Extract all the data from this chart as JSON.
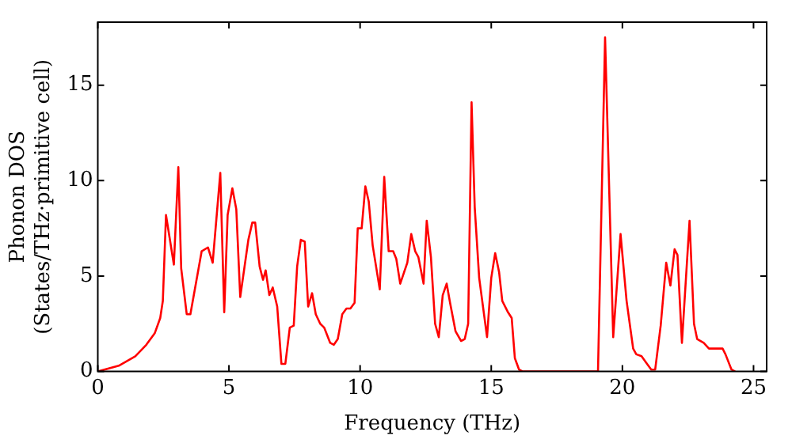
{
  "chart_data": {
    "type": "line",
    "xlabel": "Frequency (THz)",
    "ylabel": "Phonon DOS\n(States/THz·primitive cell)",
    "xlim": [
      0,
      25.5
    ],
    "ylim": [
      0,
      18.3
    ],
    "xticks": [
      0,
      5,
      10,
      15,
      20,
      25
    ],
    "yticks": [
      0,
      5,
      10,
      15
    ],
    "grid": false,
    "legend": false,
    "marker": "none",
    "line_style": "solid",
    "x": [
      0,
      0.8,
      1.43,
      1.85,
      2.17,
      2.38,
      2.48,
      2.6,
      2.9,
      3.07,
      3.18,
      3.39,
      3.53,
      3.96,
      4.2,
      4.38,
      4.67,
      4.82,
      4.95,
      5.13,
      5.28,
      5.43,
      5.74,
      5.89,
      6.0,
      6.17,
      6.3,
      6.4,
      6.54,
      6.67,
      6.84,
      7.0,
      7.15,
      7.32,
      7.47,
      7.6,
      7.74,
      7.89,
      8.02,
      8.17,
      8.31,
      8.48,
      8.63,
      8.86,
      9.0,
      9.15,
      9.32,
      9.48,
      9.63,
      9.79,
      9.91,
      10.06,
      10.2,
      10.33,
      10.48,
      10.75,
      10.92,
      11.09,
      11.26,
      11.38,
      11.53,
      11.8,
      11.95,
      12.1,
      12.22,
      12.42,
      12.54,
      12.7,
      12.86,
      13.0,
      13.15,
      13.3,
      13.43,
      13.64,
      13.85,
      13.99,
      14.12,
      14.25,
      14.37,
      14.54,
      14.84,
      15.0,
      15.15,
      15.3,
      15.42,
      15.64,
      15.78,
      15.9,
      16.06,
      16.2,
      19.07,
      19.34,
      19.65,
      19.93,
      20.16,
      20.41,
      20.53,
      20.73,
      20.94,
      21.1,
      21.25,
      21.46,
      21.67,
      21.83,
      21.99,
      22.1,
      22.27,
      22.56,
      22.73,
      22.85,
      23.1,
      23.3,
      23.63,
      23.82,
      23.93,
      24.16,
      24.3
    ],
    "series": [
      {
        "color": "#ff0000",
        "values": [
          0,
          0.3,
          0.8,
          1.4,
          2.0,
          2.8,
          3.7,
          8.2,
          5.6,
          10.7,
          5.4,
          3.0,
          3.0,
          6.3,
          6.5,
          5.7,
          10.4,
          3.1,
          8.2,
          9.6,
          8.5,
          3.9,
          6.9,
          7.8,
          7.8,
          5.5,
          4.8,
          5.3,
          4.0,
          4.4,
          3.4,
          0.4,
          0.4,
          2.3,
          2.4,
          5.5,
          6.9,
          6.8,
          3.4,
          4.1,
          3.0,
          2.5,
          2.3,
          1.5,
          1.4,
          1.7,
          3.0,
          3.3,
          3.3,
          3.6,
          7.5,
          7.5,
          9.7,
          8.9,
          6.6,
          4.3,
          10.2,
          6.3,
          6.3,
          5.9,
          4.6,
          5.7,
          7.2,
          6.3,
          6.0,
          4.6,
          7.9,
          6.0,
          2.5,
          1.8,
          4.0,
          4.6,
          3.6,
          2.1,
          1.6,
          1.7,
          2.5,
          14.1,
          8.6,
          4.9,
          1.8,
          4.9,
          6.2,
          5.2,
          3.7,
          3.1,
          2.8,
          0.7,
          0.1,
          0,
          0,
          17.5,
          1.8,
          7.2,
          3.7,
          1.2,
          0.9,
          0.8,
          0.4,
          0.1,
          0.1,
          2.4,
          5.7,
          4.5,
          6.4,
          6.1,
          1.5,
          7.9,
          2.5,
          1.7,
          1.5,
          1.2,
          1.2,
          1.2,
          0.9,
          0.1,
          0
        ]
      }
    ]
  }
}
